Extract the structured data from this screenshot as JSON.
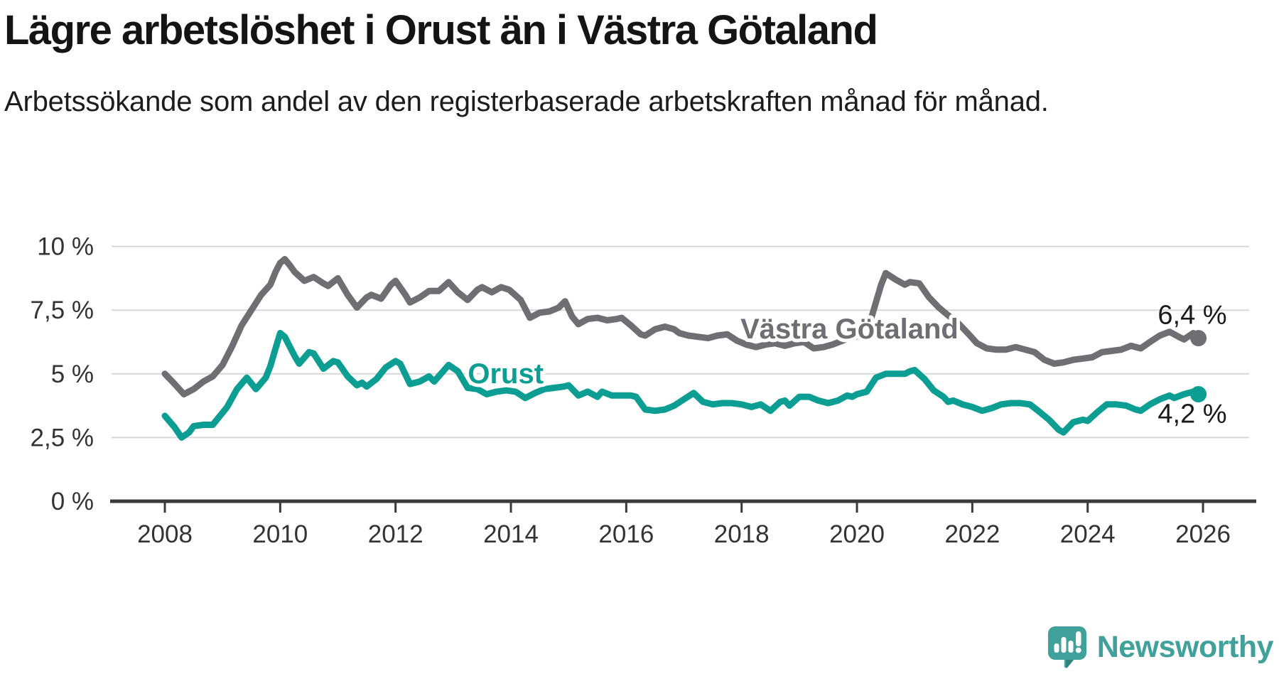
{
  "header": {
    "title": "Lägre arbetslöshet i Orust än i Västra Götaland",
    "subtitle": "Arbetssökande som andel av den registerbaserade arbetskraften månad för månad."
  },
  "branding": {
    "wordmark": "Newsworthy",
    "logo_icon": "speech-bubble-bar-chart-icon",
    "brand_color": "#3fa19a"
  },
  "chart_data": {
    "type": "line",
    "title": "Lägre arbetslöshet i Orust än i Västra Götaland",
    "subtitle": "Arbetssökande som andel av den registerbaserade arbetskraften månad för månad.",
    "grid": "horizontal",
    "colors": {
      "grid": "#d8d8d8",
      "axis": "#3a3a3a",
      "tick_text": "#333333",
      "end_label_text": "#1a1a1a"
    },
    "x_axis": {
      "ticks": [
        2008,
        2010,
        2012,
        2014,
        2016,
        2018,
        2020,
        2022,
        2024,
        2026
      ],
      "range": [
        2007.1,
        2026.9
      ]
    },
    "y_axis": {
      "unit": "%",
      "range": [
        0,
        10.3
      ],
      "ticks": [
        {
          "label": "0 %",
          "value": 0
        },
        {
          "label": "2,5 %",
          "value": 2.5
        },
        {
          "label": "5 %",
          "value": 5
        },
        {
          "label": "7,5 %",
          "value": 7.5
        },
        {
          "label": "10 %",
          "value": 10
        }
      ]
    },
    "series": [
      {
        "name": "Västra Götaland",
        "color": "#6e6e73",
        "end_label": "6,4 %",
        "end_value": 6.4,
        "label_anchor": {
          "year": 2019.87,
          "value": 6.78
        },
        "points": [
          [
            2008.0,
            5.0
          ],
          [
            2008.17,
            4.6
          ],
          [
            2008.33,
            4.2
          ],
          [
            2008.5,
            4.4
          ],
          [
            2008.67,
            4.7
          ],
          [
            2008.83,
            4.9
          ],
          [
            2009.0,
            5.35
          ],
          [
            2009.17,
            6.1
          ],
          [
            2009.33,
            6.9
          ],
          [
            2009.5,
            7.5
          ],
          [
            2009.67,
            8.1
          ],
          [
            2009.83,
            8.5
          ],
          [
            2009.92,
            9.0
          ],
          [
            2010.0,
            9.35
          ],
          [
            2010.08,
            9.5
          ],
          [
            2010.17,
            9.25
          ],
          [
            2010.25,
            9.0
          ],
          [
            2010.42,
            8.65
          ],
          [
            2010.58,
            8.8
          ],
          [
            2010.75,
            8.55
          ],
          [
            2010.83,
            8.45
          ],
          [
            2011.0,
            8.75
          ],
          [
            2011.17,
            8.1
          ],
          [
            2011.33,
            7.6
          ],
          [
            2011.5,
            8.0
          ],
          [
            2011.58,
            8.1
          ],
          [
            2011.75,
            7.95
          ],
          [
            2011.92,
            8.5
          ],
          [
            2012.0,
            8.65
          ],
          [
            2012.17,
            8.1
          ],
          [
            2012.25,
            7.8
          ],
          [
            2012.42,
            8.0
          ],
          [
            2012.58,
            8.25
          ],
          [
            2012.75,
            8.25
          ],
          [
            2012.92,
            8.6
          ],
          [
            2013.08,
            8.2
          ],
          [
            2013.25,
            7.9
          ],
          [
            2013.42,
            8.3
          ],
          [
            2013.5,
            8.4
          ],
          [
            2013.67,
            8.2
          ],
          [
            2013.83,
            8.4
          ],
          [
            2013.97,
            8.3
          ],
          [
            2014.17,
            7.9
          ],
          [
            2014.33,
            7.2
          ],
          [
            2014.5,
            7.4
          ],
          [
            2014.67,
            7.45
          ],
          [
            2014.83,
            7.6
          ],
          [
            2014.94,
            7.85
          ],
          [
            2015.06,
            7.25
          ],
          [
            2015.17,
            6.95
          ],
          [
            2015.33,
            7.15
          ],
          [
            2015.5,
            7.2
          ],
          [
            2015.67,
            7.1
          ],
          [
            2015.83,
            7.15
          ],
          [
            2015.92,
            7.2
          ],
          [
            2016.08,
            6.9
          ],
          [
            2016.25,
            6.55
          ],
          [
            2016.33,
            6.5
          ],
          [
            2016.5,
            6.75
          ],
          [
            2016.67,
            6.85
          ],
          [
            2016.83,
            6.75
          ],
          [
            2016.92,
            6.6
          ],
          [
            2017.08,
            6.5
          ],
          [
            2017.25,
            6.45
          ],
          [
            2017.42,
            6.4
          ],
          [
            2017.58,
            6.5
          ],
          [
            2017.75,
            6.55
          ],
          [
            2017.92,
            6.3
          ],
          [
            2018.08,
            6.15
          ],
          [
            2018.25,
            6.05
          ],
          [
            2018.42,
            6.15
          ],
          [
            2018.58,
            6.2
          ],
          [
            2018.75,
            6.1
          ],
          [
            2018.92,
            6.2
          ],
          [
            2019.08,
            6.25
          ],
          [
            2019.25,
            6.0
          ],
          [
            2019.42,
            6.05
          ],
          [
            2019.58,
            6.15
          ],
          [
            2019.75,
            6.3
          ],
          [
            2019.92,
            6.45
          ],
          [
            2020.08,
            6.5
          ],
          [
            2020.25,
            7.2
          ],
          [
            2020.42,
            8.5
          ],
          [
            2020.5,
            8.95
          ],
          [
            2020.67,
            8.7
          ],
          [
            2020.83,
            8.5
          ],
          [
            2020.92,
            8.6
          ],
          [
            2021.08,
            8.55
          ],
          [
            2021.25,
            8.0
          ],
          [
            2021.42,
            7.6
          ],
          [
            2021.58,
            7.3
          ],
          [
            2021.75,
            7.0
          ],
          [
            2021.92,
            6.6
          ],
          [
            2022.08,
            6.2
          ],
          [
            2022.25,
            6.0
          ],
          [
            2022.42,
            5.95
          ],
          [
            2022.58,
            5.95
          ],
          [
            2022.75,
            6.05
          ],
          [
            2022.92,
            5.95
          ],
          [
            2023.08,
            5.85
          ],
          [
            2023.25,
            5.55
          ],
          [
            2023.42,
            5.4
          ],
          [
            2023.58,
            5.45
          ],
          [
            2023.75,
            5.55
          ],
          [
            2023.92,
            5.6
          ],
          [
            2024.08,
            5.65
          ],
          [
            2024.25,
            5.85
          ],
          [
            2024.42,
            5.9
          ],
          [
            2024.58,
            5.95
          ],
          [
            2024.75,
            6.1
          ],
          [
            2024.92,
            6.0
          ],
          [
            2025.08,
            6.25
          ],
          [
            2025.25,
            6.5
          ],
          [
            2025.42,
            6.65
          ],
          [
            2025.58,
            6.45
          ],
          [
            2025.67,
            6.35
          ],
          [
            2025.83,
            6.6
          ],
          [
            2025.92,
            6.4
          ]
        ]
      },
      {
        "name": "Orust",
        "color": "#0c9e93",
        "end_label": "4,2 %",
        "end_value": 4.2,
        "label_anchor": {
          "year": 2013.91,
          "value": 5.02
        },
        "points": [
          [
            2008.0,
            3.35
          ],
          [
            2008.17,
            2.9
          ],
          [
            2008.29,
            2.5
          ],
          [
            2008.42,
            2.7
          ],
          [
            2008.5,
            2.95
          ],
          [
            2008.67,
            3.0
          ],
          [
            2008.83,
            3.0
          ],
          [
            2008.92,
            3.25
          ],
          [
            2009.08,
            3.7
          ],
          [
            2009.25,
            4.4
          ],
          [
            2009.42,
            4.85
          ],
          [
            2009.58,
            4.4
          ],
          [
            2009.75,
            4.85
          ],
          [
            2009.83,
            5.3
          ],
          [
            2009.92,
            6.0
          ],
          [
            2010.0,
            6.6
          ],
          [
            2010.08,
            6.45
          ],
          [
            2010.25,
            5.7
          ],
          [
            2010.33,
            5.4
          ],
          [
            2010.5,
            5.85
          ],
          [
            2010.58,
            5.8
          ],
          [
            2010.75,
            5.2
          ],
          [
            2010.92,
            5.5
          ],
          [
            2011.0,
            5.45
          ],
          [
            2011.17,
            4.9
          ],
          [
            2011.33,
            4.55
          ],
          [
            2011.42,
            4.65
          ],
          [
            2011.5,
            4.5
          ],
          [
            2011.67,
            4.8
          ],
          [
            2011.83,
            5.25
          ],
          [
            2012.0,
            5.5
          ],
          [
            2012.08,
            5.4
          ],
          [
            2012.25,
            4.6
          ],
          [
            2012.42,
            4.7
          ],
          [
            2012.58,
            4.9
          ],
          [
            2012.67,
            4.7
          ],
          [
            2012.92,
            5.35
          ],
          [
            2013.08,
            5.1
          ],
          [
            2013.25,
            4.45
          ],
          [
            2013.42,
            4.4
          ],
          [
            2013.58,
            4.2
          ],
          [
            2013.75,
            4.3
          ],
          [
            2013.92,
            4.35
          ],
          [
            2014.08,
            4.3
          ],
          [
            2014.25,
            4.05
          ],
          [
            2014.42,
            4.25
          ],
          [
            2014.58,
            4.4
          ],
          [
            2014.75,
            4.45
          ],
          [
            2014.92,
            4.5
          ],
          [
            2015.0,
            4.55
          ],
          [
            2015.17,
            4.15
          ],
          [
            2015.33,
            4.3
          ],
          [
            2015.5,
            4.1
          ],
          [
            2015.58,
            4.3
          ],
          [
            2015.75,
            4.15
          ],
          [
            2015.92,
            4.15
          ],
          [
            2016.08,
            4.15
          ],
          [
            2016.17,
            4.1
          ],
          [
            2016.33,
            3.6
          ],
          [
            2016.5,
            3.55
          ],
          [
            2016.67,
            3.6
          ],
          [
            2016.83,
            3.75
          ],
          [
            2017.0,
            4.0
          ],
          [
            2017.17,
            4.25
          ],
          [
            2017.33,
            3.9
          ],
          [
            2017.5,
            3.8
          ],
          [
            2017.67,
            3.85
          ],
          [
            2017.83,
            3.85
          ],
          [
            2018.0,
            3.8
          ],
          [
            2018.17,
            3.7
          ],
          [
            2018.33,
            3.8
          ],
          [
            2018.5,
            3.55
          ],
          [
            2018.67,
            3.9
          ],
          [
            2018.75,
            3.95
          ],
          [
            2018.83,
            3.75
          ],
          [
            2019.0,
            4.1
          ],
          [
            2019.17,
            4.1
          ],
          [
            2019.33,
            3.95
          ],
          [
            2019.5,
            3.85
          ],
          [
            2019.67,
            3.95
          ],
          [
            2019.83,
            4.15
          ],
          [
            2019.92,
            4.1
          ],
          [
            2020.0,
            4.2
          ],
          [
            2020.17,
            4.3
          ],
          [
            2020.33,
            4.85
          ],
          [
            2020.5,
            5.0
          ],
          [
            2020.67,
            5.0
          ],
          [
            2020.83,
            5.0
          ],
          [
            2020.92,
            5.1
          ],
          [
            2021.0,
            5.15
          ],
          [
            2021.17,
            4.8
          ],
          [
            2021.33,
            4.35
          ],
          [
            2021.5,
            4.1
          ],
          [
            2021.58,
            3.9
          ],
          [
            2021.67,
            3.95
          ],
          [
            2021.83,
            3.8
          ],
          [
            2022.0,
            3.7
          ],
          [
            2022.17,
            3.55
          ],
          [
            2022.33,
            3.65
          ],
          [
            2022.5,
            3.8
          ],
          [
            2022.67,
            3.85
          ],
          [
            2022.83,
            3.85
          ],
          [
            2023.0,
            3.8
          ],
          [
            2023.17,
            3.5
          ],
          [
            2023.33,
            3.2
          ],
          [
            2023.5,
            2.8
          ],
          [
            2023.58,
            2.7
          ],
          [
            2023.75,
            3.1
          ],
          [
            2023.92,
            3.2
          ],
          [
            2024.0,
            3.15
          ],
          [
            2024.17,
            3.5
          ],
          [
            2024.33,
            3.8
          ],
          [
            2024.5,
            3.8
          ],
          [
            2024.67,
            3.75
          ],
          [
            2024.83,
            3.6
          ],
          [
            2024.92,
            3.55
          ],
          [
            2025.08,
            3.8
          ],
          [
            2025.25,
            4.0
          ],
          [
            2025.42,
            4.15
          ],
          [
            2025.5,
            4.05
          ],
          [
            2025.67,
            4.2
          ],
          [
            2025.83,
            4.3
          ],
          [
            2025.92,
            4.2
          ]
        ]
      }
    ]
  }
}
